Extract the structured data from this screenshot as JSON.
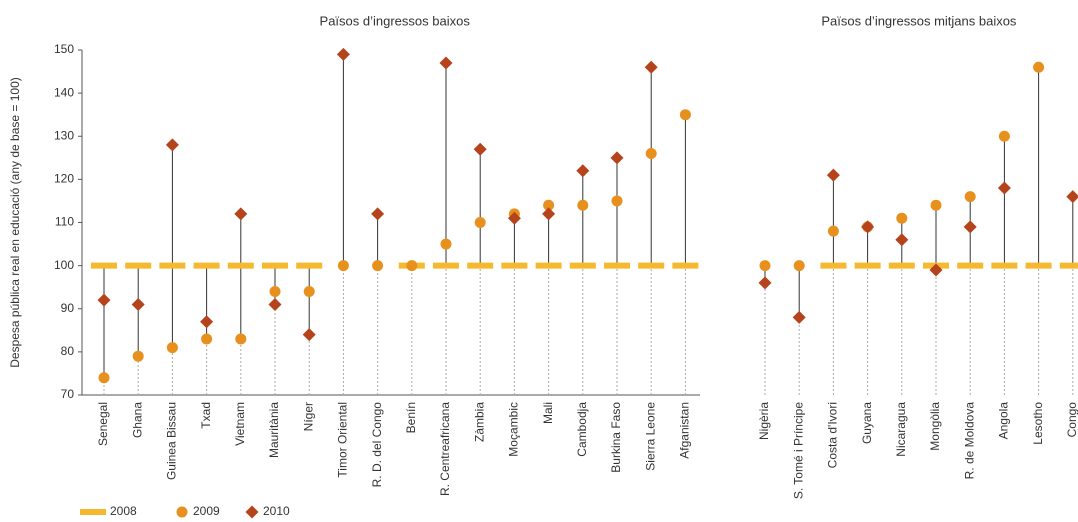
{
  "chart_data": [
    {
      "type": "dot-range",
      "title": "Països d’ingressos baixos",
      "y_label": "Despesa pública real en educació (any de base = 100)",
      "categories": [
        "Senegal",
        "Ghana",
        "Guinea Bissau",
        "Txad",
        "Vietnam",
        "Mauritània",
        "Níger",
        "Timor Oriental",
        "R. D. del Congo",
        "Benín",
        "R. Centreafricana",
        "Zàmbia",
        "Moçambic",
        "Mali",
        "Cambodja",
        "Burkina Faso",
        "Sierra Leone",
        "Afganistan"
      ],
      "series": [
        {
          "name": "2008",
          "color": "#f5b82e",
          "marker": "dash",
          "values": [
            100,
            100,
            100,
            100,
            100,
            100,
            100,
            null,
            null,
            100,
            100,
            100,
            100,
            100,
            100,
            100,
            100,
            100
          ]
        },
        {
          "name": "2009",
          "color": "#e8901e",
          "marker": "circle",
          "values": [
            74,
            79,
            81,
            83,
            83,
            94,
            94,
            100,
            100,
            100,
            105,
            110,
            112,
            114,
            114,
            115,
            126,
            135
          ]
        },
        {
          "name": "2010",
          "color": "#b5431b",
          "marker": "diamond",
          "values": [
            92,
            91,
            128,
            87,
            112,
            91,
            84,
            149,
            112,
            null,
            147,
            127,
            111,
            112,
            122,
            125,
            146,
            null
          ]
        }
      ],
      "ylim": [
        70,
        150
      ],
      "yticks": [
        70,
        80,
        90,
        100,
        110,
        120,
        130,
        140,
        150
      ]
    },
    {
      "type": "dot-range",
      "title": "Països d’ingressos mitjans baixos",
      "categories": [
        "Nigèria",
        "S. Tomé i Príncipe",
        "Costa d'Ivori",
        "Guyana",
        "Nicaragua",
        "Mongòlia",
        "R. de Moldova",
        "Angola",
        "Lesotho",
        "Congo"
      ],
      "series": [
        {
          "name": "2008",
          "color": "#f5b82e",
          "marker": "dash",
          "values": [
            null,
            null,
            100,
            100,
            100,
            100,
            100,
            100,
            100,
            100
          ]
        },
        {
          "name": "2009",
          "color": "#e8901e",
          "marker": "circle",
          "values": [
            100,
            100,
            108,
            109,
            111,
            114,
            116,
            130,
            146,
            null
          ]
        },
        {
          "name": "2010",
          "color": "#b5431b",
          "marker": "diamond",
          "values": [
            96,
            88,
            121,
            109,
            106,
            99,
            109,
            118,
            null,
            116
          ]
        }
      ],
      "ylim": [
        70,
        150
      ]
    }
  ]
}
